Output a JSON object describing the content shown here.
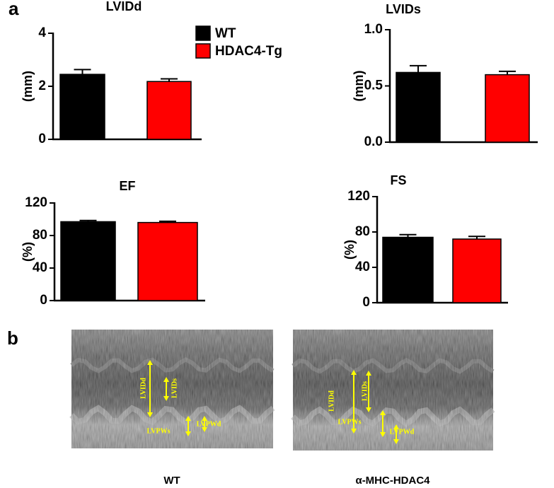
{
  "panel_labels": [
    "a",
    "b"
  ],
  "chart_data": [
    {
      "type": "bar",
      "title": "LVIDd",
      "y_label": "(mm)",
      "ylim": [
        0,
        4
      ],
      "yticks": [
        0,
        2,
        4
      ],
      "series": [
        {
          "name": "WT",
          "color": "#000000",
          "values": [
            2.45
          ],
          "errors": [
            0.18
          ]
        },
        {
          "name": "HDAC4-Tg",
          "color": "#ff0000",
          "values": [
            2.18
          ],
          "errors": [
            0.1
          ]
        }
      ]
    },
    {
      "type": "bar",
      "title": "LVIDs",
      "y_label": "(mm)",
      "ylim": [
        0,
        1
      ],
      "yticks": [
        {
          "value": 0,
          "label": "0.0"
        },
        {
          "value": 0.5,
          "label": "0.5"
        },
        {
          "value": 1,
          "label": "1.0"
        }
      ],
      "series": [
        {
          "color": "#000000",
          "values": [
            0.62
          ],
          "errors": [
            0.06
          ]
        },
        {
          "color": "#ff0000",
          "values": [
            0.6
          ],
          "errors": [
            0.03
          ]
        }
      ]
    },
    {
      "type": "bar",
      "title": "EF",
      "y_label": "(%)",
      "ylim": [
        0,
        120
      ],
      "yticks": [
        0,
        40,
        80,
        120
      ],
      "series": [
        {
          "color": "#000000",
          "values": [
            97
          ],
          "errors": [
            1.5
          ]
        },
        {
          "color": "#ff0000",
          "values": [
            96
          ],
          "errors": [
            1.5
          ]
        }
      ]
    },
    {
      "type": "bar",
      "title": "FS",
      "y_label": "(%)",
      "ylim": [
        0,
        120
      ],
      "yticks": [
        0,
        40,
        80,
        120
      ],
      "series": [
        {
          "color": "#000000",
          "values": [
            74
          ],
          "errors": [
            3
          ]
        },
        {
          "color": "#ff0000",
          "values": [
            72
          ],
          "errors": [
            3
          ]
        }
      ]
    }
  ],
  "echo_images": [
    {
      "caption": "WT",
      "annotations": [
        "LVIDd",
        "LVIDs",
        "LVPWs",
        "LVPWd"
      ]
    },
    {
      "caption": "α-MHC-HDAC4",
      "annotations": [
        "LVIDd",
        "LVIDs",
        "LVPWs",
        "LVPWd"
      ]
    }
  ]
}
